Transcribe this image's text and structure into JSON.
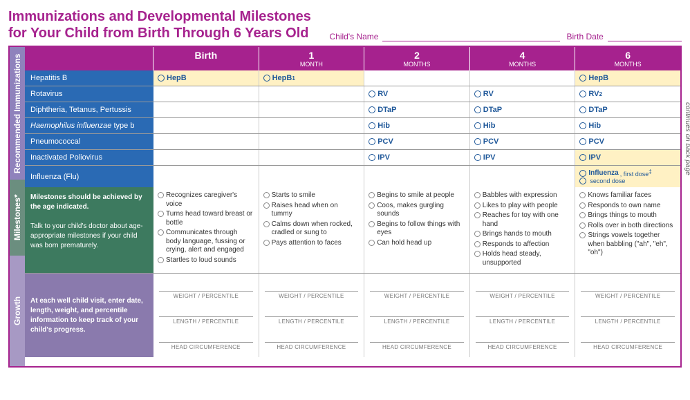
{
  "title1": "Immunizations and Developmental Milestones",
  "title2": "for Your Child from Birth Through 6 Years Old",
  "childName": "Child's Name",
  "birthDate": "Birth Date",
  "continues": "continues on back page",
  "tabs": {
    "imm": "Recommended Immunizations",
    "mile": "Milestones*",
    "growth": "Growth"
  },
  "cols": [
    {
      "big": "Birth",
      "sm": ""
    },
    {
      "big": "1",
      "sm": "MONTH"
    },
    {
      "big": "2",
      "sm": "MONTHS"
    },
    {
      "big": "4",
      "sm": "MONTHS"
    },
    {
      "big": "6",
      "sm": "MONTHS"
    }
  ],
  "imm": [
    {
      "name": "Hepatitis B",
      "hl": [
        0,
        1,
        4
      ],
      "cells": [
        {
          "v": "HepB"
        },
        {
          "v": "HepB",
          "sup": "1"
        },
        null,
        null,
        {
          "v": "HepB"
        }
      ]
    },
    {
      "name": "Rotavirus",
      "hl": [],
      "cells": [
        null,
        null,
        {
          "v": "RV"
        },
        {
          "v": "RV"
        },
        {
          "v": "RV",
          "sup": "2"
        }
      ]
    },
    {
      "name": "Diphtheria, Tetanus, Pertussis",
      "hl": [],
      "cells": [
        null,
        null,
        {
          "v": "DTaP"
        },
        {
          "v": "DTaP"
        },
        {
          "v": "DTaP"
        }
      ]
    },
    {
      "name": "Haemophilus influenzae type b",
      "italic": true,
      "hl": [],
      "cells": [
        null,
        null,
        {
          "v": "Hib"
        },
        {
          "v": "Hib"
        },
        {
          "v": "Hib"
        }
      ]
    },
    {
      "name": "Pneumococcal",
      "hl": [],
      "cells": [
        null,
        null,
        {
          "v": "PCV"
        },
        {
          "v": "PCV"
        },
        {
          "v": "PCV"
        }
      ]
    },
    {
      "name": "Inactivated Poliovirus",
      "hl": [
        4
      ],
      "cells": [
        null,
        null,
        {
          "v": "IPV"
        },
        {
          "v": "IPV"
        },
        {
          "v": "IPV"
        }
      ]
    },
    {
      "name": "Influenza (Flu)",
      "hl": [
        4
      ],
      "cells": [
        null,
        null,
        null,
        null,
        {
          "flu": true,
          "v1": "Influenza",
          "n1": ", first dose",
          "sup": "‡",
          "v2": "second dose"
        }
      ]
    }
  ],
  "mileLbl": {
    "b1": "Milestones should be achieved by the age indicated.",
    "p": "Talk to your child's doctor about age-appropriate milestones if your child was born prematurely."
  },
  "miles": [
    [
      "Recognizes caregiver's voice",
      "Turns head toward breast or bottle",
      "Communicates through body language, fussing or crying, alert and engaged",
      "Startles to loud sounds"
    ],
    [
      "Starts to smile",
      "Raises head when on tummy",
      "Calms down when rocked, cradled or sung to",
      "Pays attention to faces"
    ],
    [
      "Begins to smile at people",
      "Coos, makes gurgling sounds",
      "Begins to follow things with eyes",
      "Can hold head up"
    ],
    [
      "Babbles with expression",
      "Likes to play with people",
      "Reaches for toy with one hand",
      "Brings hands to mouth",
      "Responds to affection",
      "Holds head steady, unsupported"
    ],
    [
      "Knows familiar faces",
      "Responds to own name",
      "Brings things to mouth",
      "Rolls over in both directions",
      "Strings vowels together when babbling (\"ah\", \"eh\", \"oh\")"
    ]
  ],
  "growthLbl": "At each well child visit, enter date, length, weight, and percentile information to keep track of your child's progress.",
  "growthFields": [
    "WEIGHT / PERCENTILE",
    "LENGTH / PERCENTILE",
    "HEAD CIRCUMFERENCE"
  ],
  "colors": {
    "magenta": "#a6228e",
    "blue": "#2a6ab4",
    "vaxBlue": "#1e5799",
    "green": "#3d7a5f",
    "purple": "#8a7aad",
    "lightPurple": "#8f82bc",
    "mileGreen": "#6b8e7f",
    "hlYellow": "#fff1c4"
  }
}
